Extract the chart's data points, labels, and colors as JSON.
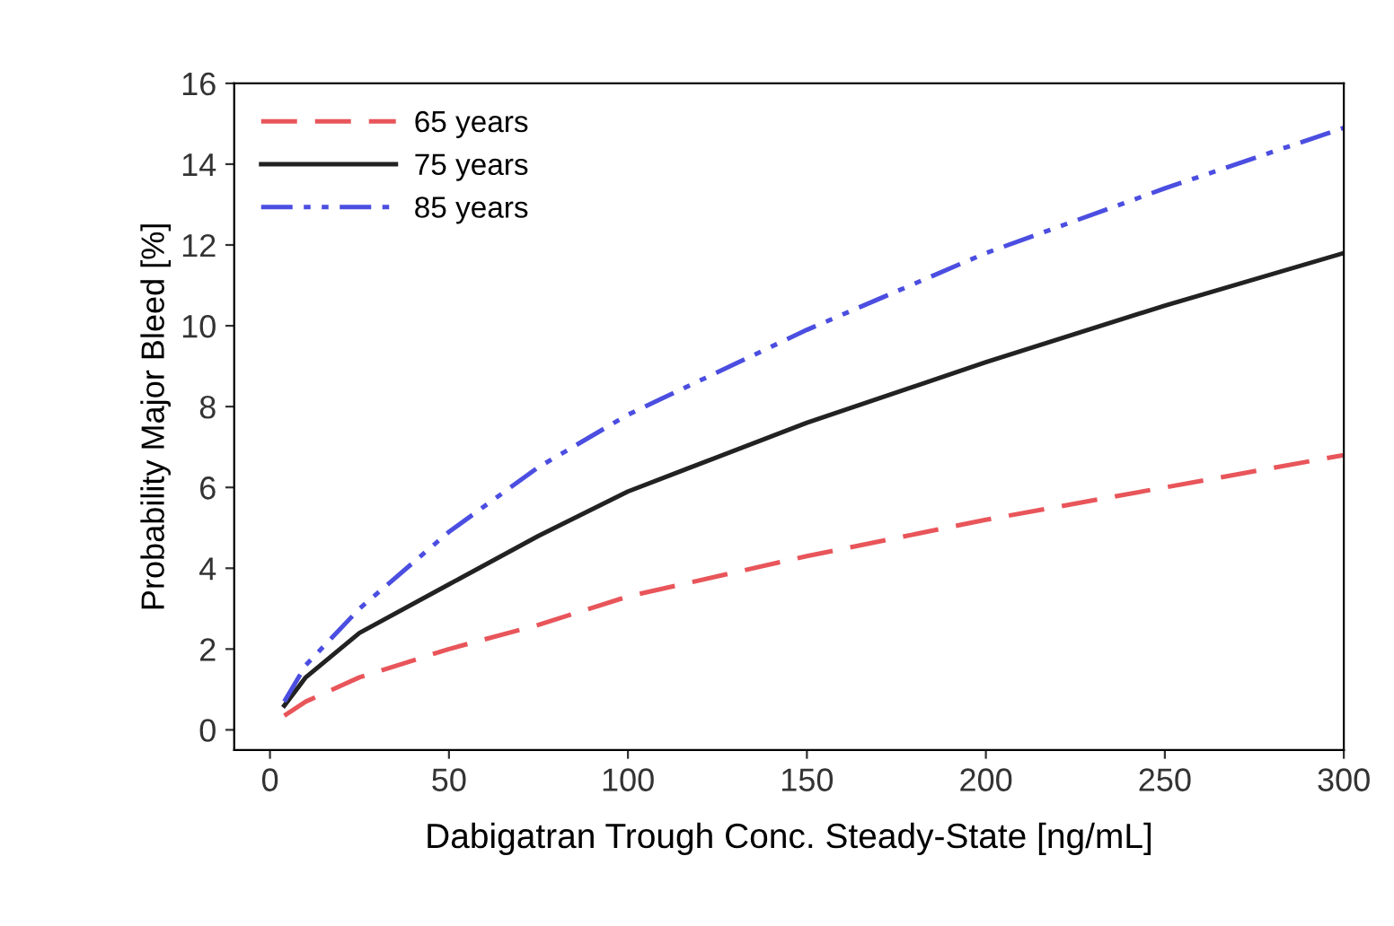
{
  "chart_data": {
    "type": "line",
    "xlabel": "Dabigatran Trough Conc. Steady-State [ng/mL]",
    "ylabel": "Probability Major Bleed [%]",
    "x": [
      4,
      10,
      25,
      50,
      75,
      100,
      150,
      200,
      250,
      300
    ],
    "series": [
      {
        "name": "65 years",
        "color": "#e8555a",
        "line_style": "dashed",
        "values": [
          0.35,
          0.7,
          1.3,
          2.0,
          2.6,
          3.3,
          4.3,
          5.2,
          6.0,
          6.8
        ]
      },
      {
        "name": "75 years",
        "color": "#222222",
        "line_style": "solid",
        "values": [
          0.6,
          1.3,
          2.4,
          3.6,
          4.8,
          5.9,
          7.6,
          9.1,
          10.5,
          11.8
        ]
      },
      {
        "name": "85 years",
        "color": "#4b4ee0",
        "line_style": "dashdotdot",
        "values": [
          0.7,
          1.6,
          3.0,
          4.9,
          6.5,
          7.8,
          9.9,
          11.8,
          13.4,
          14.9
        ]
      }
    ],
    "xlim": [
      -10,
      300
    ],
    "ylim": [
      -0.5,
      16
    ],
    "xticks": [
      0,
      50,
      100,
      150,
      200,
      250,
      300
    ],
    "yticks": [
      0,
      2,
      4,
      6,
      8,
      10,
      12,
      14,
      16
    ],
    "grid": false,
    "legend": "top left",
    "marker": "none"
  }
}
